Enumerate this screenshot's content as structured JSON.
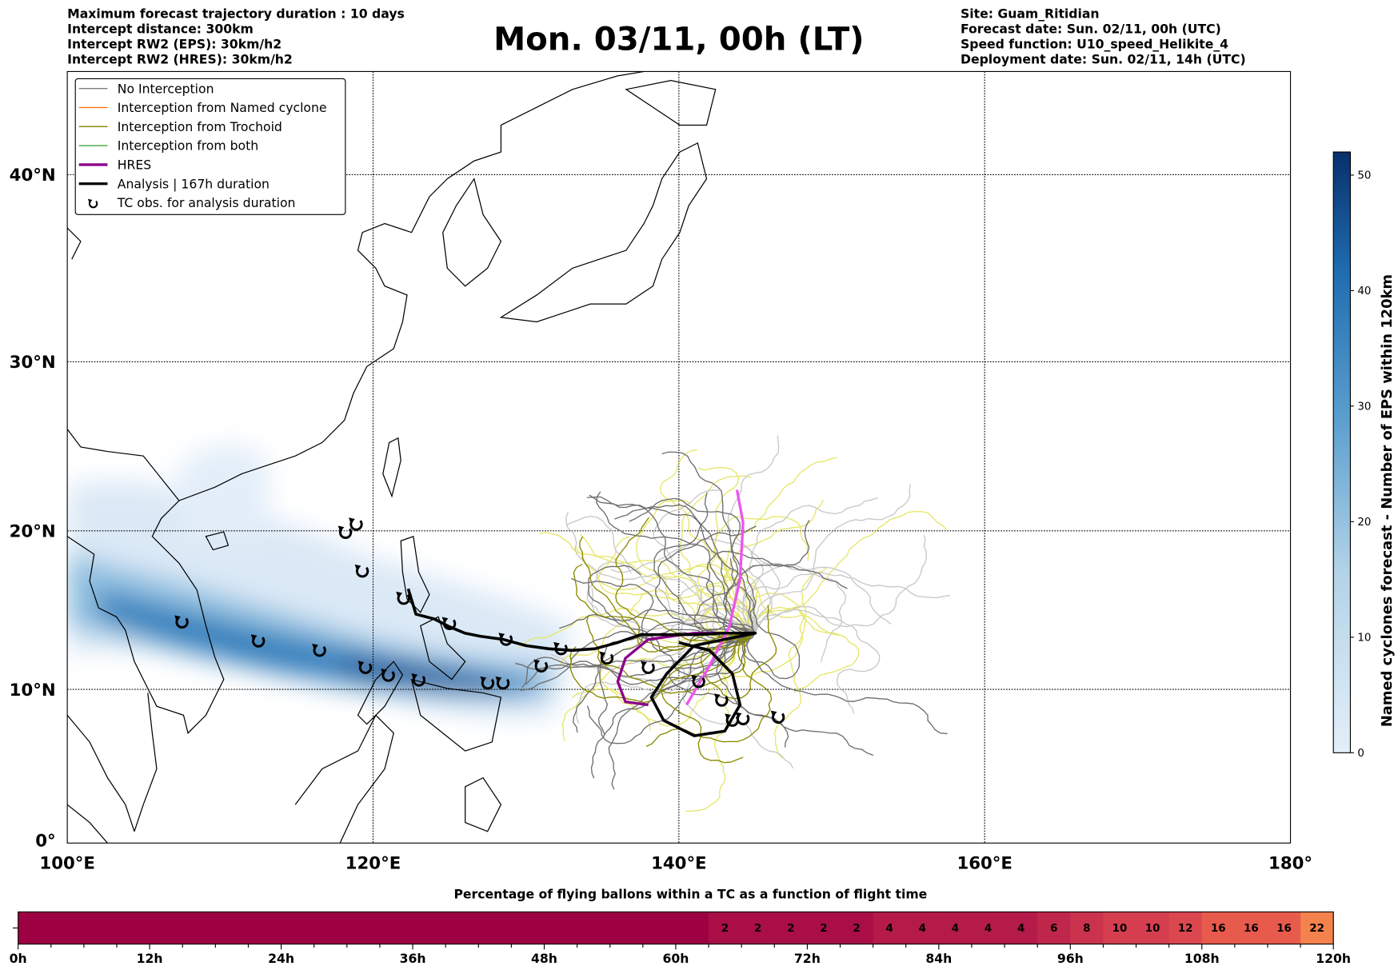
{
  "header": {
    "left": [
      "Maximum forecast trajectory duration : 10 days",
      "Intercept distance: 300km",
      "Intercept RW2 (EPS):  30km/h2",
      "Intercept RW2 (HRES): 30km/h2"
    ],
    "title": "Mon. 03/11, 00h (LT)",
    "right": [
      "Site: Guam_Ritidian",
      "Forecast date: Sun. 02/11, 00h (UTC)",
      "Speed function: U10_speed_Helikite_4",
      "Deployment date: Sun. 02/11, 14h (UTC)"
    ]
  },
  "legend": [
    {
      "label": "No Interception",
      "color": "#7f7f7f"
    },
    {
      "label": "Interception from Named cyclone",
      "color": "#ff6600"
    },
    {
      "label": "Interception from Trochoid",
      "color": "#808000"
    },
    {
      "label": "Interception from both",
      "color": "#2ca02c"
    },
    {
      "label": "HRES",
      "color": "#8b008b"
    },
    {
      "label": "Analysis | 167h duration",
      "color": "#000000"
    },
    {
      "label": "TC obs. for analysis duration",
      "color": "#000000"
    }
  ],
  "map": {
    "lat_labels": [
      "0°",
      "10°N",
      "20°N",
      "30°N",
      "40°N"
    ],
    "lat_values": [
      0,
      10,
      20,
      30,
      40
    ],
    "lon_labels": [
      "100°E",
      "120°E",
      "140°E",
      "160°E",
      "180°"
    ],
    "lon_values": [
      100,
      120,
      140,
      160,
      180
    ],
    "tc_obs": [
      [
        107.5,
        14.3
      ],
      [
        112.5,
        13.1
      ],
      [
        116.5,
        12.5
      ],
      [
        118.2,
        19.9
      ],
      [
        118.9,
        20.4
      ],
      [
        119.3,
        17.5
      ],
      [
        119.5,
        11.4
      ],
      [
        121,
        10.9
      ],
      [
        122,
        15.8
      ],
      [
        123,
        10.6
      ],
      [
        125,
        14.2
      ],
      [
        127.5,
        10.4
      ],
      [
        128.5,
        10.4
      ],
      [
        128.7,
        13.2
      ],
      [
        131,
        11.5
      ],
      [
        132.3,
        12.6
      ],
      [
        135.3,
        12
      ],
      [
        138,
        11.4
      ],
      [
        141.3,
        10.5
      ],
      [
        142.8,
        9.3
      ],
      [
        143.5,
        8
      ],
      [
        144.2,
        8.1
      ],
      [
        146.5,
        8.2
      ]
    ],
    "analysis_track": [
      [
        122.3,
        16.4
      ],
      [
        122.8,
        14.8
      ],
      [
        124,
        14.5
      ],
      [
        125,
        14
      ],
      [
        126,
        13.6
      ],
      [
        127,
        13.4
      ],
      [
        128.5,
        13.2
      ],
      [
        130,
        12.8
      ],
      [
        131.5,
        12.6
      ],
      [
        133,
        12.5
      ],
      [
        134.5,
        12.6
      ],
      [
        136,
        13
      ],
      [
        137.5,
        13.5
      ],
      [
        139,
        13.5
      ],
      [
        141,
        13.5
      ],
      [
        143,
        13.6
      ],
      [
        145,
        13.6
      ],
      [
        141,
        12.8
      ],
      [
        139.2,
        11
      ],
      [
        138.2,
        9.5
      ],
      [
        139,
        8
      ],
      [
        141,
        7
      ],
      [
        143,
        7.3
      ],
      [
        144,
        9
      ],
      [
        143.5,
        11
      ],
      [
        142,
        12.5
      ],
      [
        140,
        13
      ]
    ],
    "hres_track": [
      [
        145,
        13.6
      ],
      [
        141,
        13.6
      ],
      [
        138,
        13.2
      ],
      [
        136.5,
        12
      ],
      [
        136,
        10.5
      ],
      [
        136.5,
        9.2
      ],
      [
        138,
        9
      ]
    ],
    "hres_late": [
      [
        140.5,
        9
      ],
      [
        142,
        11.5
      ],
      [
        143.3,
        14
      ],
      [
        144,
        17
      ],
      [
        144.2,
        20.5
      ],
      [
        143.8,
        22.5
      ]
    ]
  },
  "colorbar": {
    "label": "Named cyclones forecast - Number of EPS within 120km",
    "ticks": [
      "0",
      "10",
      "20",
      "30",
      "40",
      "50"
    ],
    "tick_values": [
      0,
      10,
      20,
      30,
      40,
      50
    ],
    "max": 52
  },
  "flight_bar": {
    "title": "Percentage of flying ballons within a TC as a function of flight time",
    "tick_labels": [
      "0h",
      "12h",
      "24h",
      "36h",
      "48h",
      "60h",
      "72h",
      "84h",
      "96h",
      "108h",
      "120h"
    ],
    "percent": [
      0,
      0,
      0,
      0,
      0,
      0,
      0,
      0,
      0,
      0,
      0,
      0,
      0,
      0,
      0,
      0,
      0,
      0,
      0,
      0,
      0,
      2,
      2,
      2,
      2,
      2,
      4,
      4,
      4,
      4,
      4,
      6,
      8,
      10,
      10,
      12,
      16,
      16,
      16,
      22
    ]
  }
}
